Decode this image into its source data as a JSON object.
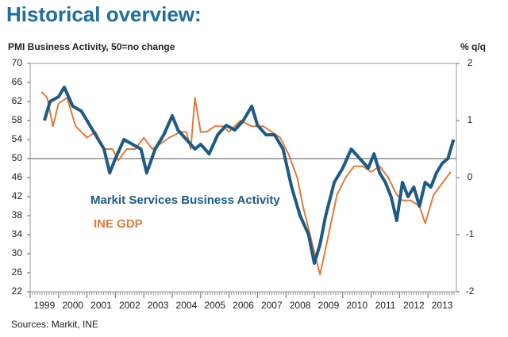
{
  "chart_data": {
    "type": "line",
    "title": "Historical overview:",
    "y_label": "PMI Business Activity, 50=no change",
    "y2_label": "% q/q",
    "source": "Sources: Markit, INE",
    "xlim": [
      1999,
      2014
    ],
    "xticks": [
      1999,
      2000,
      2001,
      2002,
      2003,
      2004,
      2005,
      2006,
      2007,
      2008,
      2009,
      2010,
      2011,
      2012,
      2013
    ],
    "ylim": [
      22,
      70
    ],
    "yticks": [
      22,
      26,
      30,
      34,
      38,
      42,
      46,
      50,
      54,
      58,
      62,
      66,
      70
    ],
    "y2lim": [
      -2,
      2
    ],
    "y2ticks": [
      -2,
      -1,
      0,
      1,
      2
    ],
    "reference_line": 50,
    "series": [
      {
        "name": "Markit Services Business Activity",
        "color": "#1d5a85",
        "x": [
          1999.5,
          1999.7,
          2000.0,
          2000.2,
          2000.5,
          2000.8,
          2001.0,
          2001.3,
          2001.6,
          2001.8,
          2002.0,
          2002.3,
          2002.6,
          2002.9,
          2003.1,
          2003.4,
          2003.7,
          2004.0,
          2004.2,
          2004.5,
          2004.8,
          2005.0,
          2005.3,
          2005.6,
          2005.9,
          2006.2,
          2006.5,
          2006.8,
          2007.0,
          2007.3,
          2007.6,
          2007.9,
          2008.2,
          2008.5,
          2008.8,
          2009.0,
          2009.2,
          2009.4,
          2009.7,
          2010.0,
          2010.3,
          2010.6,
          2010.9,
          2011.1,
          2011.3,
          2011.5,
          2011.7,
          2011.9,
          2012.1,
          2012.3,
          2012.5,
          2012.7,
          2012.9,
          2013.1,
          2013.3,
          2013.5,
          2013.7,
          2013.9
        ],
        "values": [
          58,
          62,
          63,
          65,
          61,
          60,
          58,
          55,
          52,
          47,
          50,
          54,
          53,
          52,
          47,
          52,
          55,
          59,
          56,
          54,
          52,
          53,
          51,
          55,
          57,
          56,
          58,
          61,
          57,
          55,
          55,
          52,
          44,
          38,
          34,
          28,
          32,
          38,
          45,
          48,
          52,
          50,
          48,
          51,
          47,
          45,
          42,
          37,
          45,
          42,
          44,
          40,
          45,
          44,
          47,
          49,
          50,
          54
        ]
      },
      {
        "name": "INE GDP",
        "color": "#e07b39",
        "axis": "y2",
        "x": [
          1999.4,
          1999.6,
          1999.8,
          2000.0,
          2000.3,
          2000.6,
          2001.0,
          2001.3,
          2001.6,
          2001.9,
          2002.1,
          2002.4,
          2002.7,
          2003.0,
          2003.3,
          2003.6,
          2003.9,
          2004.3,
          2004.5,
          2004.65,
          2004.8,
          2005.0,
          2005.2,
          2005.5,
          2005.8,
          2006.0,
          2006.4,
          2006.8,
          2007.2,
          2007.5,
          2007.8,
          2008.1,
          2008.4,
          2008.6,
          2008.9,
          2009.2,
          2009.5,
          2009.8,
          2010.1,
          2010.4,
          2010.7,
          2011.0,
          2011.3,
          2011.6,
          2011.9,
          2012.1,
          2012.4,
          2012.7,
          2012.9,
          2013.2,
          2013.5,
          2013.8
        ],
        "values": [
          1.5,
          1.4,
          0.9,
          1.3,
          1.4,
          0.9,
          0.7,
          0.8,
          0.5,
          0.5,
          0.3,
          0.5,
          0.5,
          0.7,
          0.5,
          0.6,
          0.7,
          0.8,
          0.8,
          0.5,
          1.4,
          0.8,
          0.8,
          0.9,
          0.9,
          0.8,
          1.0,
          0.9,
          0.9,
          0.8,
          0.7,
          0.4,
          0.0,
          -0.5,
          -1.1,
          -1.7,
          -1.0,
          -0.3,
          0.0,
          0.2,
          0.2,
          0.1,
          0.2,
          0.0,
          -0.3,
          -0.4,
          -0.4,
          -0.5,
          -0.8,
          -0.3,
          -0.1,
          0.1
        ]
      }
    ]
  }
}
